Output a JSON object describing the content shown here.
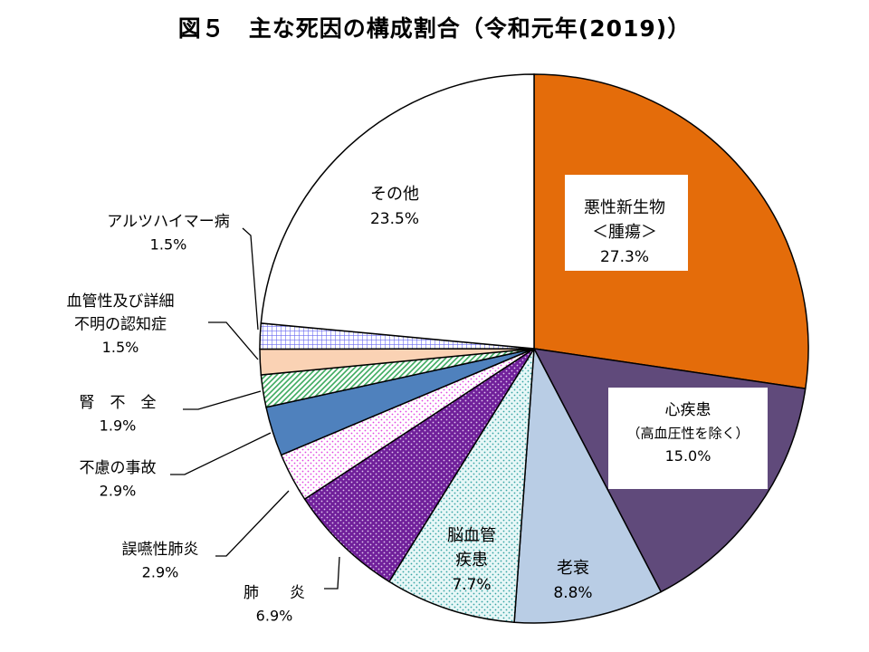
{
  "chart_data": {
    "type": "pie",
    "title": "図５　主な死因の構成割合（令和元年(2019)）",
    "unit": "%",
    "slices": [
      {
        "label_lines": [
          "悪性新生物",
          "＜腫瘍＞"
        ],
        "value": 27.3,
        "value_text": "27.3%",
        "color": "#E46C0A",
        "pattern": "solid",
        "label_style": "boxed-inside"
      },
      {
        "label_lines": [
          "心疾患",
          "（高血圧性を除く）"
        ],
        "value": 15.0,
        "value_text": "15.0%",
        "color": "#604A7B",
        "pattern": "solid",
        "label_style": "boxed-inside"
      },
      {
        "label_lines": [
          "老衰"
        ],
        "value": 8.8,
        "value_text": "8.8%",
        "color": "#B9CDE5",
        "pattern": "solid",
        "label_style": "inside"
      },
      {
        "label_lines": [
          "脳血管",
          "疾患"
        ],
        "value": 7.7,
        "value_text": "7.7%",
        "color": "#8FD6D6",
        "pattern": "dots-light",
        "label_style": "inside"
      },
      {
        "label_lines": [
          "肺　　炎"
        ],
        "value": 6.9,
        "value_text": "6.9%",
        "color": "#7030A0",
        "pattern": "dots-dark",
        "label_style": "outside"
      },
      {
        "label_lines": [
          "誤嚥性肺炎"
        ],
        "value": 2.9,
        "value_text": "2.9%",
        "color": "#E046E0",
        "pattern": "dots-pink",
        "label_style": "outside"
      },
      {
        "label_lines": [
          "不慮の事故"
        ],
        "value": 2.9,
        "value_text": "2.9%",
        "color": "#4F81BD",
        "pattern": "solid",
        "label_style": "outside"
      },
      {
        "label_lines": [
          "腎　不　全"
        ],
        "value": 1.9,
        "value_text": "1.9%",
        "color": "#3DAA5F",
        "pattern": "diagonal",
        "label_style": "outside"
      },
      {
        "label_lines": [
          "血管性及び詳細",
          "不明の認知症"
        ],
        "value": 1.5,
        "value_text": "1.5%",
        "color": "#FAD2B4",
        "pattern": "solid",
        "label_style": "outside"
      },
      {
        "label_lines": [
          "アルツハイマー病"
        ],
        "value": 1.5,
        "value_text": "1.5%",
        "color": "#7F7FFF",
        "pattern": "grid",
        "label_style": "outside"
      },
      {
        "label_lines": [
          "その他"
        ],
        "value": 23.5,
        "value_text": "23.5%",
        "color": "#FFFFFF",
        "pattern": "solid",
        "label_style": "inside"
      }
    ],
    "start_angle": "12 o'clock",
    "direction": "clockwise"
  }
}
